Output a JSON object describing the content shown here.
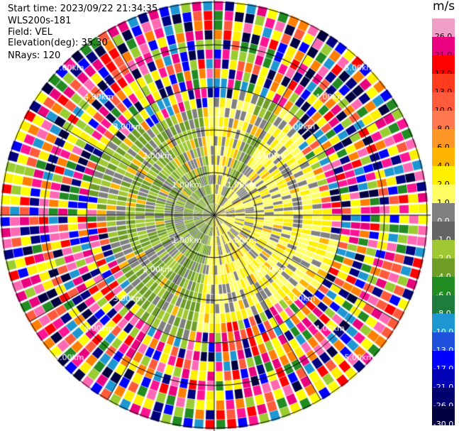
{
  "header": {
    "start_time": "Start time: 2023/09/22 21:34:35",
    "device": "WLS200s-181",
    "field": "Field: VEL",
    "elevation": "Elevation(deg): 35.30",
    "nrays": "NRays: 120"
  },
  "colorbar": {
    "unit": "m/s",
    "levels": [
      {
        "label": "26.0",
        "color": "#f0a0c8"
      },
      {
        "label": "21.0",
        "color": "#e8007e"
      },
      {
        "label": "17.0",
        "color": "#ff0000"
      },
      {
        "label": "13.0",
        "color": "#ff3c1e"
      },
      {
        "label": "10.0",
        "color": "#ff5a3c"
      },
      {
        "label": "8.0",
        "color": "#ff7850"
      },
      {
        "label": "6.0",
        "color": "#ff9628"
      },
      {
        "label": "4.0",
        "color": "#ffb400"
      },
      {
        "label": "2.0",
        "color": "#fff000"
      },
      {
        "label": "1.0",
        "color": "#ffff64"
      },
      {
        "label": "0.0",
        "color": "#808080"
      },
      {
        "label": "-1.0",
        "color": "#646464"
      },
      {
        "label": "-2.0",
        "color": "#a0c832"
      },
      {
        "label": "-4.0",
        "color": "#6e9e28"
      },
      {
        "label": "-6.0",
        "color": "#228b22"
      },
      {
        "label": "-8.0",
        "color": "#1e7d3c"
      },
      {
        "label": "-10.0",
        "color": "#1e96d2"
      },
      {
        "label": "-13.0",
        "color": "#1e50dc"
      },
      {
        "label": "-17.0",
        "color": "#0000ff"
      },
      {
        "label": "-21.0",
        "color": "#0000b4"
      },
      {
        "label": "-26.0",
        "color": "#00006e"
      },
      {
        "label": "-30.0",
        "color": "#000040"
      }
    ]
  },
  "rings": [
    {
      "label": "1.00km"
    },
    {
      "label": "2.00km"
    },
    {
      "label": "3.00km"
    },
    {
      "label": "4.00km"
    },
    {
      "label": "5.00km"
    }
  ]
}
